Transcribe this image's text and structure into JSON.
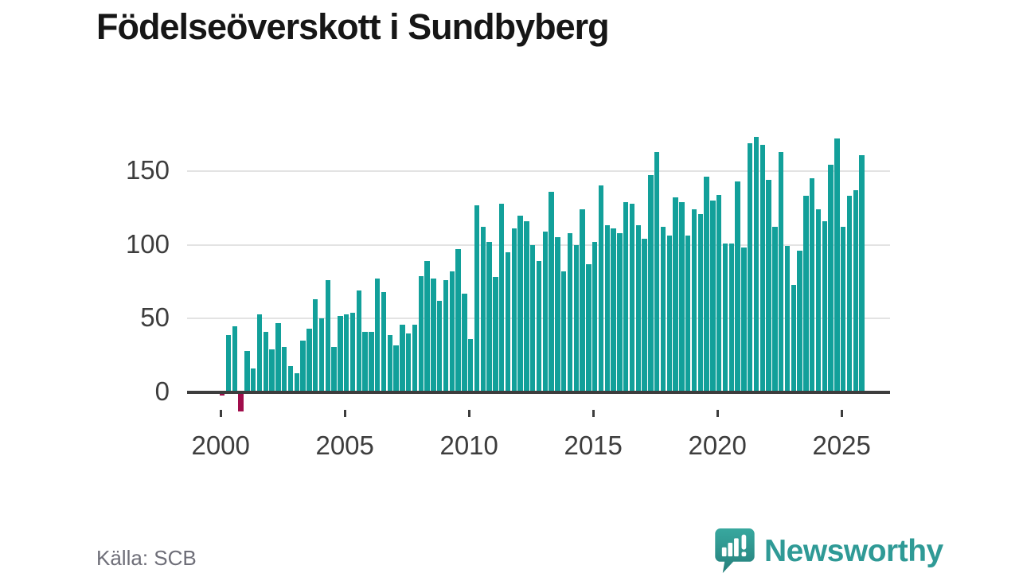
{
  "title": "Födelseöverskott i Sundbyberg",
  "source": "Källa: SCB",
  "branding": {
    "name": "Newsworthy",
    "logo_icon": "speech-bubble-bar-chart-icon"
  },
  "colors": {
    "bar_positive": "#12a09a",
    "bar_negative": "#a00d4b",
    "axis": "#3d3d3d",
    "gridline": "#e3e3e3",
    "title_text": "#161616",
    "source_text": "#6e6e78",
    "brand_teal": "#2f9a96",
    "logo_gradient_top": "#38a89f",
    "logo_gradient_bottom": "#257f7b"
  },
  "chart_data": {
    "type": "bar",
    "frequency": "quarterly",
    "start_year": 2000,
    "start_quarter": 1,
    "values": [
      -2,
      39,
      45,
      -13,
      28,
      16,
      53,
      41,
      29,
      47,
      31,
      18,
      13,
      35,
      43,
      63,
      50,
      76,
      31,
      52,
      53,
      54,
      69,
      41,
      41,
      77,
      68,
      39,
      32,
      46,
      40,
      46,
      79,
      89,
      77,
      62,
      76,
      82,
      97,
      67,
      36,
      127,
      112,
      102,
      78,
      128,
      95,
      111,
      120,
      116,
      100,
      89,
      109,
      136,
      105,
      82,
      108,
      100,
      124,
      87,
      102,
      140,
      113,
      111,
      108,
      129,
      128,
      113,
      104,
      147,
      163,
      112,
      106,
      132,
      129,
      106,
      124,
      121,
      146,
      130,
      134,
      101,
      101,
      143,
      98,
      169,
      173,
      168,
      144,
      112,
      163,
      99,
      73,
      96,
      133,
      145,
      124,
      116,
      154,
      172,
      112,
      133,
      137,
      161
    ],
    "y_ticks": [
      0,
      50,
      100,
      150
    ],
    "y_tick_labels": [
      "0",
      "50",
      "100",
      "150"
    ],
    "x_tick_years": [
      2000,
      2005,
      2010,
      2015,
      2020,
      2025
    ],
    "x_tick_labels": [
      "2000",
      "2005",
      "2010",
      "2015",
      "2020",
      "2025"
    ],
    "ylim": [
      -20,
      180
    ],
    "grid": "horizontal",
    "legend": "none"
  }
}
